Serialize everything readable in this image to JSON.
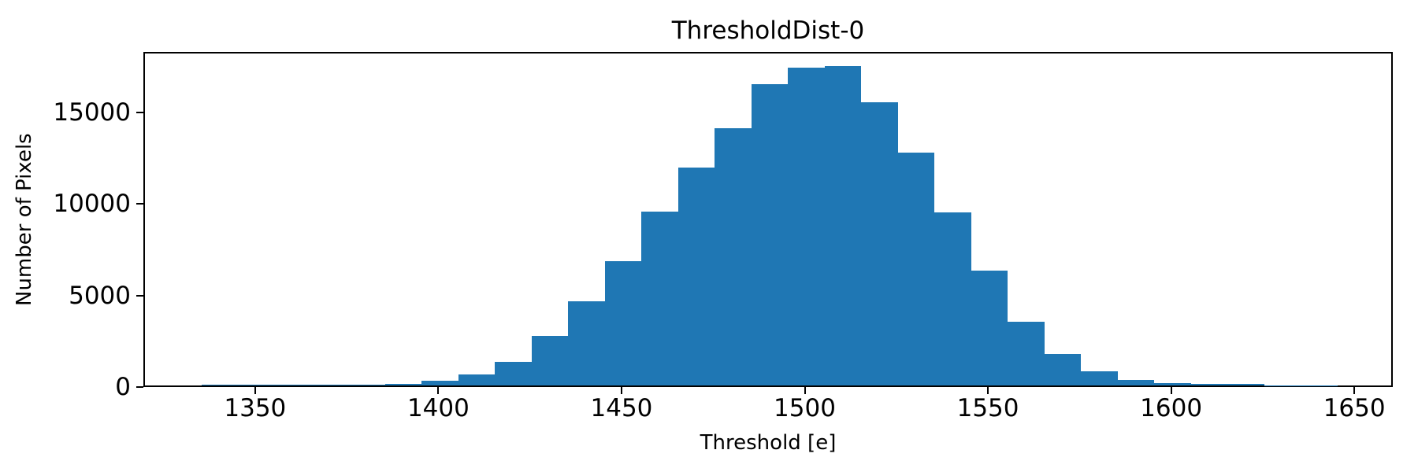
{
  "figure": {
    "background": "#ffffff",
    "spine_color": "#000000",
    "text_color": "#000000"
  },
  "chart_data": {
    "type": "bar",
    "subtype": "histogram",
    "title": "ThresholdDist-0",
    "xlabel": "Threshold [e]",
    "ylabel": "Number of Pixels",
    "bar_color": "#1f77b4",
    "grid": false,
    "legend_position": "none",
    "xlim": [
      1319.5,
      1660.5
    ],
    "ylim": [
      0,
      18315
    ],
    "xticks": [
      1350,
      1400,
      1450,
      1500,
      1550,
      1600,
      1650
    ],
    "yticks": [
      0,
      5000,
      10000,
      15000
    ],
    "bin_edges": [
      1335,
      1345,
      1355,
      1365,
      1375,
      1385,
      1395,
      1405,
      1415,
      1425,
      1435,
      1445,
      1455,
      1465,
      1475,
      1485,
      1495,
      1505,
      1515,
      1525,
      1535,
      1545,
      1555,
      1565,
      1575,
      1585,
      1595,
      1605,
      1615,
      1625,
      1635,
      1645
    ],
    "counts": [
      40,
      42,
      45,
      48,
      52,
      90,
      250,
      620,
      1300,
      2730,
      4590,
      6790,
      9500,
      11890,
      14060,
      16460,
      17360,
      17450,
      15490,
      12740,
      9470,
      6280,
      3490,
      1700,
      780,
      315,
      142,
      74,
      70,
      15,
      8
    ]
  }
}
